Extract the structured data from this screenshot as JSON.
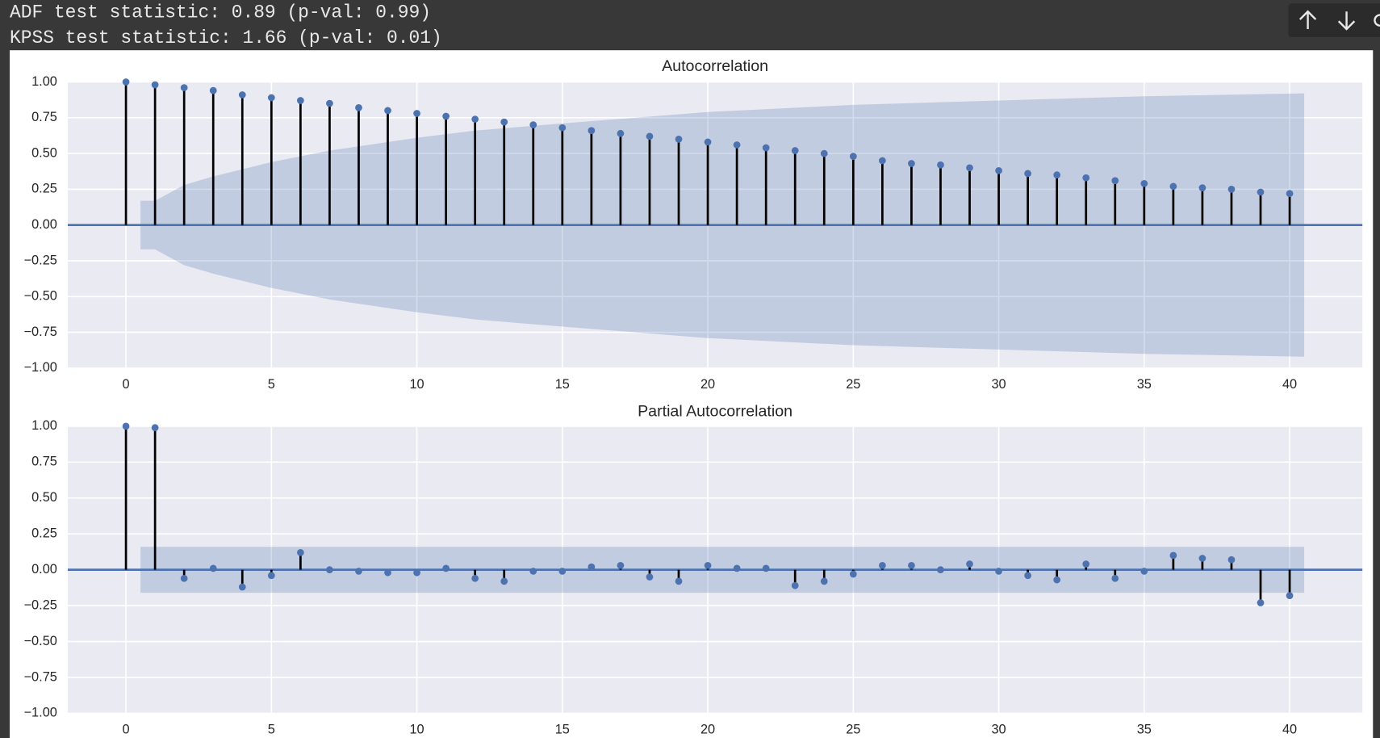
{
  "output_text": [
    "ADF test statistic: 0.89 (p-val: 0.99)",
    "KPSS test statistic: 1.66 (p-val: 0.01)"
  ],
  "chart_data": [
    {
      "type": "stem",
      "title": "Autocorrelation",
      "color": "#4c72b0",
      "stem_color": "#000000",
      "grid": true,
      "x": [
        0,
        1,
        2,
        3,
        4,
        5,
        6,
        7,
        8,
        9,
        10,
        11,
        12,
        13,
        14,
        15,
        16,
        17,
        18,
        19,
        20,
        21,
        22,
        23,
        24,
        25,
        26,
        27,
        28,
        29,
        30,
        31,
        32,
        33,
        34,
        35,
        36,
        37,
        38,
        39,
        40
      ],
      "values": [
        1.0,
        0.98,
        0.96,
        0.94,
        0.91,
        0.89,
        0.87,
        0.85,
        0.82,
        0.8,
        0.78,
        0.76,
        0.74,
        0.72,
        0.7,
        0.68,
        0.66,
        0.64,
        0.62,
        0.6,
        0.58,
        0.56,
        0.54,
        0.52,
        0.5,
        0.48,
        0.45,
        0.43,
        0.42,
        0.4,
        0.38,
        0.36,
        0.35,
        0.33,
        0.31,
        0.29,
        0.27,
        0.26,
        0.25,
        0.23,
        0.22
      ],
      "band": {
        "x": [
          0.5,
          1,
          2,
          3,
          4,
          5,
          7,
          10,
          12,
          15,
          20,
          25,
          30,
          35,
          40.5
        ],
        "upper": [
          0.17,
          0.17,
          0.28,
          0.34,
          0.39,
          0.44,
          0.52,
          0.61,
          0.66,
          0.71,
          0.79,
          0.84,
          0.87,
          0.9,
          0.92
        ],
        "lower": [
          -0.17,
          -0.17,
          -0.28,
          -0.34,
          -0.39,
          -0.44,
          -0.52,
          -0.61,
          -0.66,
          -0.71,
          -0.79,
          -0.84,
          -0.87,
          -0.9,
          -0.92
        ]
      },
      "xlim": [
        -2,
        42.5
      ],
      "xticks": [
        0,
        5,
        10,
        15,
        20,
        25,
        30,
        35,
        40
      ],
      "ylim": [
        -1,
        1
      ],
      "yticks": [
        {
          "value": -1,
          "label": "−1.00"
        },
        {
          "value": -0.75,
          "label": "−0.75"
        },
        {
          "value": -0.5,
          "label": "−0.50"
        },
        {
          "value": -0.25,
          "label": "−0.25"
        },
        {
          "value": 0,
          "label": "0.00"
        },
        {
          "value": 0.25,
          "label": "0.25"
        },
        {
          "value": 0.5,
          "label": "0.50"
        },
        {
          "value": 0.75,
          "label": "0.75"
        },
        {
          "value": 1,
          "label": "1.00"
        }
      ]
    },
    {
      "type": "stem",
      "title": "Partial Autocorrelation",
      "color": "#4c72b0",
      "stem_color": "#000000",
      "grid": true,
      "x": [
        0,
        1,
        2,
        3,
        4,
        5,
        6,
        7,
        8,
        9,
        10,
        11,
        12,
        13,
        14,
        15,
        16,
        17,
        18,
        19,
        20,
        21,
        22,
        23,
        24,
        25,
        26,
        27,
        28,
        29,
        30,
        31,
        32,
        33,
        34,
        35,
        36,
        37,
        38,
        39,
        40
      ],
      "values": [
        1.0,
        0.99,
        -0.06,
        0.01,
        -0.12,
        -0.04,
        0.12,
        0.0,
        -0.01,
        -0.02,
        -0.02,
        0.01,
        -0.06,
        -0.08,
        -0.01,
        -0.01,
        0.02,
        0.03,
        -0.05,
        -0.08,
        0.03,
        0.01,
        0.01,
        -0.11,
        -0.08,
        -0.03,
        0.03,
        0.03,
        0.0,
        0.04,
        -0.01,
        -0.04,
        -0.07,
        0.04,
        -0.06,
        -0.01,
        0.1,
        0.08,
        0.07,
        -0.23,
        -0.18
      ],
      "band": {
        "x": [
          0.5,
          40.5
        ],
        "upper": [
          0.16,
          0.16
        ],
        "lower": [
          -0.16,
          -0.16
        ]
      },
      "xlim": [
        -2,
        42.5
      ],
      "xticks": [
        0,
        5,
        10,
        15,
        20,
        25,
        30,
        35,
        40
      ],
      "ylim": [
        -1,
        1
      ],
      "yticks": [
        {
          "value": -1,
          "label": "−1.00"
        },
        {
          "value": -0.75,
          "label": "−0.75"
        },
        {
          "value": -0.5,
          "label": "−0.50"
        },
        {
          "value": -0.25,
          "label": "−0.25"
        },
        {
          "value": 0,
          "label": "0.00"
        },
        {
          "value": 0.25,
          "label": "0.25"
        },
        {
          "value": 0.5,
          "label": "0.50"
        },
        {
          "value": 0.75,
          "label": "0.75"
        },
        {
          "value": 1,
          "label": "1.00"
        }
      ]
    }
  ]
}
